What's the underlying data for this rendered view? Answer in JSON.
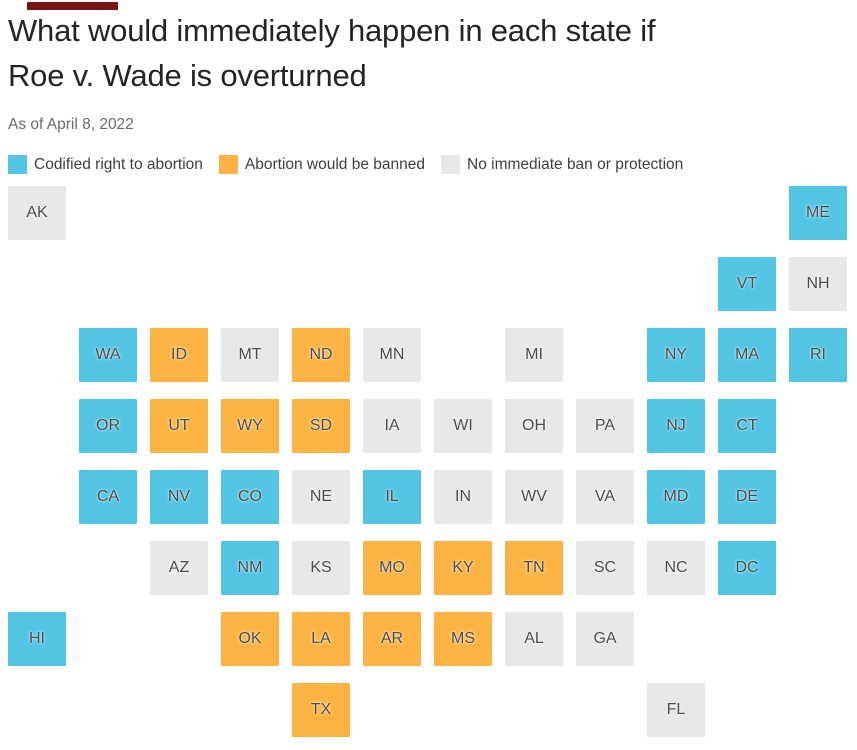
{
  "kicker": {
    "color": "#7a1313"
  },
  "header": {
    "title_line1": "What would immediately happen in each state if",
    "title_line2": "Roe v. Wade is overturned",
    "subtitle": "As of April 8, 2022"
  },
  "legend": {
    "items": [
      {
        "key": "codified",
        "label": "Codified right to abortion"
      },
      {
        "key": "banned",
        "label": "Abortion would be banned"
      },
      {
        "key": "none",
        "label": "No immediate ban or protection"
      }
    ]
  },
  "colors": {
    "codified": "#52c5e4",
    "banned": "#fbb444",
    "none": "#e7e8e8",
    "tile_label": "#4d4d4d"
  },
  "chart_data": {
    "type": "heatmap",
    "subtype": "us-state-tile-grid-map",
    "title": "What would immediately happen in each state if Roe v. Wade is overturned",
    "as_of": "As of April 8, 2022",
    "categories": [
      "Codified right to abortion",
      "Abortion would be banned",
      "No immediate ban or protection"
    ],
    "legend_position": "top",
    "grid": {
      "columns": 12,
      "rows": 8
    },
    "states": [
      {
        "abbr": "AK",
        "row": 1,
        "col": 1,
        "status": "none"
      },
      {
        "abbr": "ME",
        "row": 1,
        "col": 12,
        "status": "codified"
      },
      {
        "abbr": "VT",
        "row": 2,
        "col": 11,
        "status": "codified"
      },
      {
        "abbr": "NH",
        "row": 2,
        "col": 12,
        "status": "none"
      },
      {
        "abbr": "WA",
        "row": 3,
        "col": 2,
        "status": "codified"
      },
      {
        "abbr": "ID",
        "row": 3,
        "col": 3,
        "status": "banned"
      },
      {
        "abbr": "MT",
        "row": 3,
        "col": 4,
        "status": "none"
      },
      {
        "abbr": "ND",
        "row": 3,
        "col": 5,
        "status": "banned"
      },
      {
        "abbr": "MN",
        "row": 3,
        "col": 6,
        "status": "none"
      },
      {
        "abbr": "MI",
        "row": 3,
        "col": 8,
        "status": "none"
      },
      {
        "abbr": "NY",
        "row": 3,
        "col": 10,
        "status": "codified"
      },
      {
        "abbr": "MA",
        "row": 3,
        "col": 11,
        "status": "codified"
      },
      {
        "abbr": "RI",
        "row": 3,
        "col": 12,
        "status": "codified"
      },
      {
        "abbr": "OR",
        "row": 4,
        "col": 2,
        "status": "codified"
      },
      {
        "abbr": "UT",
        "row": 4,
        "col": 3,
        "status": "banned"
      },
      {
        "abbr": "WY",
        "row": 4,
        "col": 4,
        "status": "banned"
      },
      {
        "abbr": "SD",
        "row": 4,
        "col": 5,
        "status": "banned"
      },
      {
        "abbr": "IA",
        "row": 4,
        "col": 6,
        "status": "none"
      },
      {
        "abbr": "WI",
        "row": 4,
        "col": 7,
        "status": "none"
      },
      {
        "abbr": "OH",
        "row": 4,
        "col": 8,
        "status": "none"
      },
      {
        "abbr": "PA",
        "row": 4,
        "col": 9,
        "status": "none"
      },
      {
        "abbr": "NJ",
        "row": 4,
        "col": 10,
        "status": "codified"
      },
      {
        "abbr": "CT",
        "row": 4,
        "col": 11,
        "status": "codified"
      },
      {
        "abbr": "CA",
        "row": 5,
        "col": 2,
        "status": "codified"
      },
      {
        "abbr": "NV",
        "row": 5,
        "col": 3,
        "status": "codified"
      },
      {
        "abbr": "CO",
        "row": 5,
        "col": 4,
        "status": "codified"
      },
      {
        "abbr": "NE",
        "row": 5,
        "col": 5,
        "status": "none"
      },
      {
        "abbr": "IL",
        "row": 5,
        "col": 6,
        "status": "codified"
      },
      {
        "abbr": "IN",
        "row": 5,
        "col": 7,
        "status": "none"
      },
      {
        "abbr": "WV",
        "row": 5,
        "col": 8,
        "status": "none"
      },
      {
        "abbr": "VA",
        "row": 5,
        "col": 9,
        "status": "none"
      },
      {
        "abbr": "MD",
        "row": 5,
        "col": 10,
        "status": "codified"
      },
      {
        "abbr": "DE",
        "row": 5,
        "col": 11,
        "status": "codified"
      },
      {
        "abbr": "AZ",
        "row": 6,
        "col": 3,
        "status": "none"
      },
      {
        "abbr": "NM",
        "row": 6,
        "col": 4,
        "status": "codified"
      },
      {
        "abbr": "KS",
        "row": 6,
        "col": 5,
        "status": "none"
      },
      {
        "abbr": "MO",
        "row": 6,
        "col": 6,
        "status": "banned"
      },
      {
        "abbr": "KY",
        "row": 6,
        "col": 7,
        "status": "banned"
      },
      {
        "abbr": "TN",
        "row": 6,
        "col": 8,
        "status": "banned"
      },
      {
        "abbr": "SC",
        "row": 6,
        "col": 9,
        "status": "none"
      },
      {
        "abbr": "NC",
        "row": 6,
        "col": 10,
        "status": "none"
      },
      {
        "abbr": "DC",
        "row": 6,
        "col": 11,
        "status": "codified"
      },
      {
        "abbr": "HI",
        "row": 7,
        "col": 1,
        "status": "codified"
      },
      {
        "abbr": "OK",
        "row": 7,
        "col": 4,
        "status": "banned"
      },
      {
        "abbr": "LA",
        "row": 7,
        "col": 5,
        "status": "banned"
      },
      {
        "abbr": "AR",
        "row": 7,
        "col": 6,
        "status": "banned"
      },
      {
        "abbr": "MS",
        "row": 7,
        "col": 7,
        "status": "banned"
      },
      {
        "abbr": "AL",
        "row": 7,
        "col": 8,
        "status": "none"
      },
      {
        "abbr": "GA",
        "row": 7,
        "col": 9,
        "status": "none"
      },
      {
        "abbr": "TX",
        "row": 8,
        "col": 5,
        "status": "banned"
      },
      {
        "abbr": "FL",
        "row": 8,
        "col": 10,
        "status": "none"
      }
    ]
  }
}
